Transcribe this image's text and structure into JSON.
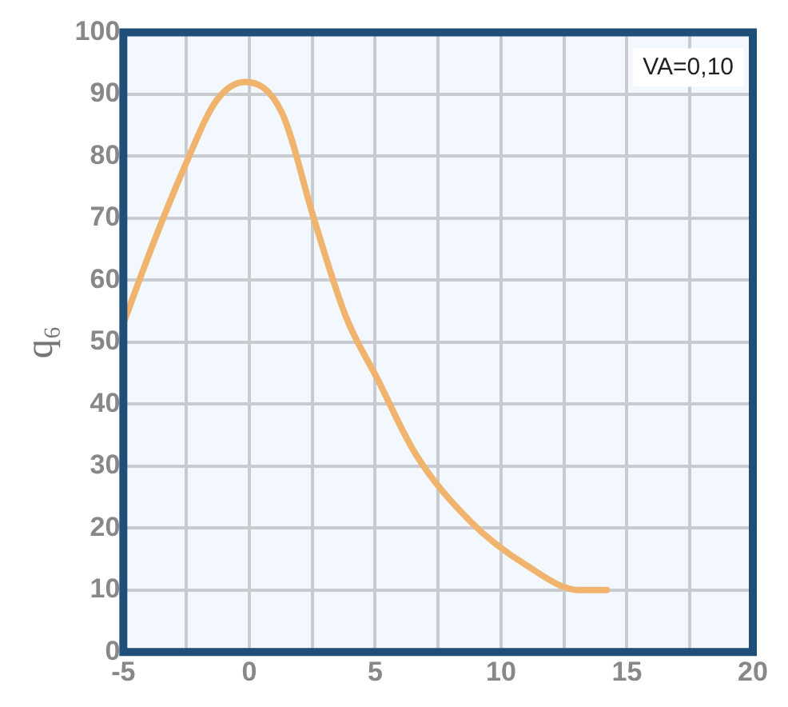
{
  "chart_data": {
    "type": "line",
    "ylabel": "q₆",
    "annotations": [
      "VA=0,10"
    ],
    "x": [
      -5,
      -3.9,
      -2.6,
      -1.3,
      -0.15,
      1.3,
      2.6,
      3.85,
      5.1,
      6.6,
      8.8,
      11,
      13.1,
      14.2
    ],
    "series": [
      {
        "color": "#f0b46e",
        "values": [
          53,
          65,
          78,
          89,
          92,
          87,
          69.5,
          54,
          44,
          32,
          21,
          14,
          10,
          10
        ]
      }
    ],
    "xlim": [
      -5,
      20
    ],
    "ylim": [
      0,
      100
    ],
    "xticks": [
      -5,
      {
        "value": -2.5,
        "label": null
      },
      0,
      {
        "value": 2.5,
        "label": null
      },
      5,
      {
        "value": 7.5,
        "label": null
      },
      10,
      {
        "value": 12.5,
        "label": null
      },
      15,
      {
        "value": 17.5,
        "label": null
      },
      20
    ],
    "yticks": [
      0,
      10,
      20,
      30,
      40,
      50,
      60,
      70,
      80,
      90,
      100
    ],
    "grid": true,
    "legend": false,
    "marker": "none",
    "line_style": "solid"
  }
}
